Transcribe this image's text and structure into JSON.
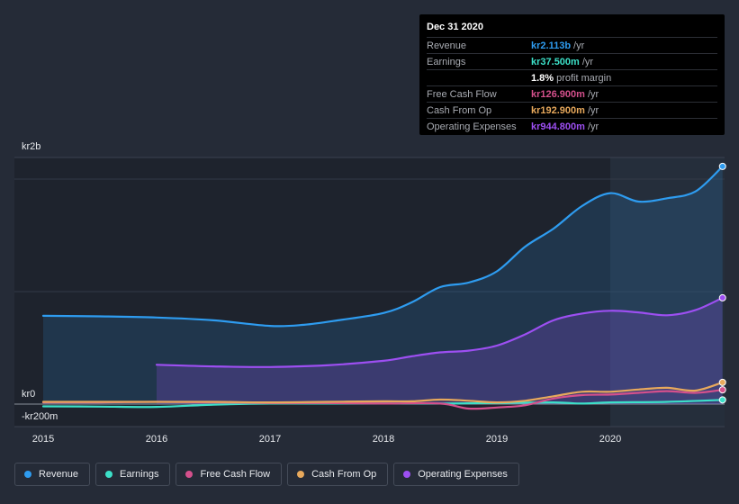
{
  "chart_data": {
    "type": "area",
    "title": "",
    "x_ticks": [
      "2015",
      "2016",
      "2017",
      "2018",
      "2019",
      "2020"
    ],
    "y_ticks": [
      {
        "label": "kr2b",
        "value": 2000
      },
      {
        "label": "kr0",
        "value": 0
      },
      {
        "label": "-kr200m",
        "value": -200
      }
    ],
    "xlim": [
      2015.0,
      2021.0
    ],
    "ylim": [
      -200,
      2200
    ],
    "highlight_start": 2020.0,
    "units": "kr m",
    "series": [
      {
        "name": "Revenue",
        "color": "#2e9cf0",
        "filled": true,
        "points": [
          [
            2015.0,
            785
          ],
          [
            2015.5,
            780
          ],
          [
            2016.0,
            770
          ],
          [
            2016.5,
            745
          ],
          [
            2017.0,
            695
          ],
          [
            2017.3,
            705
          ],
          [
            2017.6,
            745
          ],
          [
            2018.0,
            810
          ],
          [
            2018.25,
            905
          ],
          [
            2018.5,
            1040
          ],
          [
            2018.75,
            1080
          ],
          [
            2019.0,
            1180
          ],
          [
            2019.25,
            1400
          ],
          [
            2019.5,
            1560
          ],
          [
            2019.75,
            1760
          ],
          [
            2020.0,
            1875
          ],
          [
            2020.25,
            1800
          ],
          [
            2020.5,
            1830
          ],
          [
            2020.75,
            1890
          ],
          [
            2020.99,
            2113
          ]
        ]
      },
      {
        "name": "Earnings",
        "color": "#3ce0c8",
        "filled": false,
        "points": [
          [
            2015.0,
            -20
          ],
          [
            2015.5,
            -22
          ],
          [
            2016.0,
            -25
          ],
          [
            2016.5,
            -5
          ],
          [
            2017.0,
            5
          ],
          [
            2017.5,
            5
          ],
          [
            2018.0,
            5
          ],
          [
            2018.5,
            5
          ],
          [
            2019.0,
            10
          ],
          [
            2019.5,
            15
          ],
          [
            2019.75,
            5
          ],
          [
            2020.0,
            15
          ],
          [
            2020.5,
            20
          ],
          [
            2020.99,
            37.5
          ]
        ]
      },
      {
        "name": "Free Cash Flow",
        "color": "#d4508c",
        "filled": false,
        "points": [
          [
            2015.0,
            15
          ],
          [
            2015.5,
            15
          ],
          [
            2016.0,
            20
          ],
          [
            2016.5,
            15
          ],
          [
            2017.0,
            10
          ],
          [
            2017.5,
            10
          ],
          [
            2018.0,
            5
          ],
          [
            2018.5,
            5
          ],
          [
            2018.75,
            -40
          ],
          [
            2019.0,
            -30
          ],
          [
            2019.25,
            -10
          ],
          [
            2019.5,
            50
          ],
          [
            2019.75,
            80
          ],
          [
            2020.0,
            85
          ],
          [
            2020.25,
            100
          ],
          [
            2020.5,
            115
          ],
          [
            2020.75,
            100
          ],
          [
            2020.99,
            126.9
          ]
        ]
      },
      {
        "name": "Cash From Op",
        "color": "#e8a95c",
        "filled": false,
        "points": [
          [
            2015.0,
            20
          ],
          [
            2015.5,
            20
          ],
          [
            2016.0,
            20
          ],
          [
            2016.5,
            20
          ],
          [
            2017.0,
            15
          ],
          [
            2017.5,
            20
          ],
          [
            2018.0,
            25
          ],
          [
            2018.25,
            25
          ],
          [
            2018.5,
            40
          ],
          [
            2018.75,
            30
          ],
          [
            2019.0,
            15
          ],
          [
            2019.25,
            30
          ],
          [
            2019.5,
            70
          ],
          [
            2019.75,
            110
          ],
          [
            2020.0,
            110
          ],
          [
            2020.25,
            130
          ],
          [
            2020.5,
            145
          ],
          [
            2020.75,
            120
          ],
          [
            2020.99,
            192.9
          ]
        ]
      },
      {
        "name": "Operating Expenses",
        "color": "#9d4ff2",
        "filled": true,
        "points": [
          [
            2016.0,
            350
          ],
          [
            2016.5,
            335
          ],
          [
            2017.0,
            330
          ],
          [
            2017.5,
            345
          ],
          [
            2018.0,
            385
          ],
          [
            2018.25,
            425
          ],
          [
            2018.5,
            460
          ],
          [
            2018.75,
            475
          ],
          [
            2019.0,
            520
          ],
          [
            2019.25,
            620
          ],
          [
            2019.5,
            745
          ],
          [
            2019.75,
            805
          ],
          [
            2020.0,
            830
          ],
          [
            2020.25,
            815
          ],
          [
            2020.5,
            790
          ],
          [
            2020.75,
            835
          ],
          [
            2020.99,
            944.8
          ]
        ]
      }
    ]
  },
  "tooltip": {
    "date": "Dec 31 2020",
    "rows": [
      {
        "label": "Revenue",
        "value": "kr2.113b",
        "unit": "/yr",
        "color": "#2e9cf0"
      },
      {
        "label": "Earnings",
        "value": "kr37.500m",
        "unit": "/yr",
        "color": "#3ce0c8"
      },
      {
        "label": "",
        "value": "1.8%",
        "unit": "profit margin",
        "color": "#ffffff"
      },
      {
        "label": "Free Cash Flow",
        "value": "kr126.900m",
        "unit": "/yr",
        "color": "#d4508c"
      },
      {
        "label": "Cash From Op",
        "value": "kr192.900m",
        "unit": "/yr",
        "color": "#e8a95c"
      },
      {
        "label": "Operating Expenses",
        "value": "kr944.800m",
        "unit": "/yr",
        "color": "#9d4ff2"
      }
    ]
  },
  "legend": [
    {
      "label": "Revenue",
      "color": "#2e9cf0"
    },
    {
      "label": "Earnings",
      "color": "#3ce0c8"
    },
    {
      "label": "Free Cash Flow",
      "color": "#d4508c"
    },
    {
      "label": "Cash From Op",
      "color": "#e8a95c"
    },
    {
      "label": "Operating Expenses",
      "color": "#9d4ff2"
    }
  ]
}
